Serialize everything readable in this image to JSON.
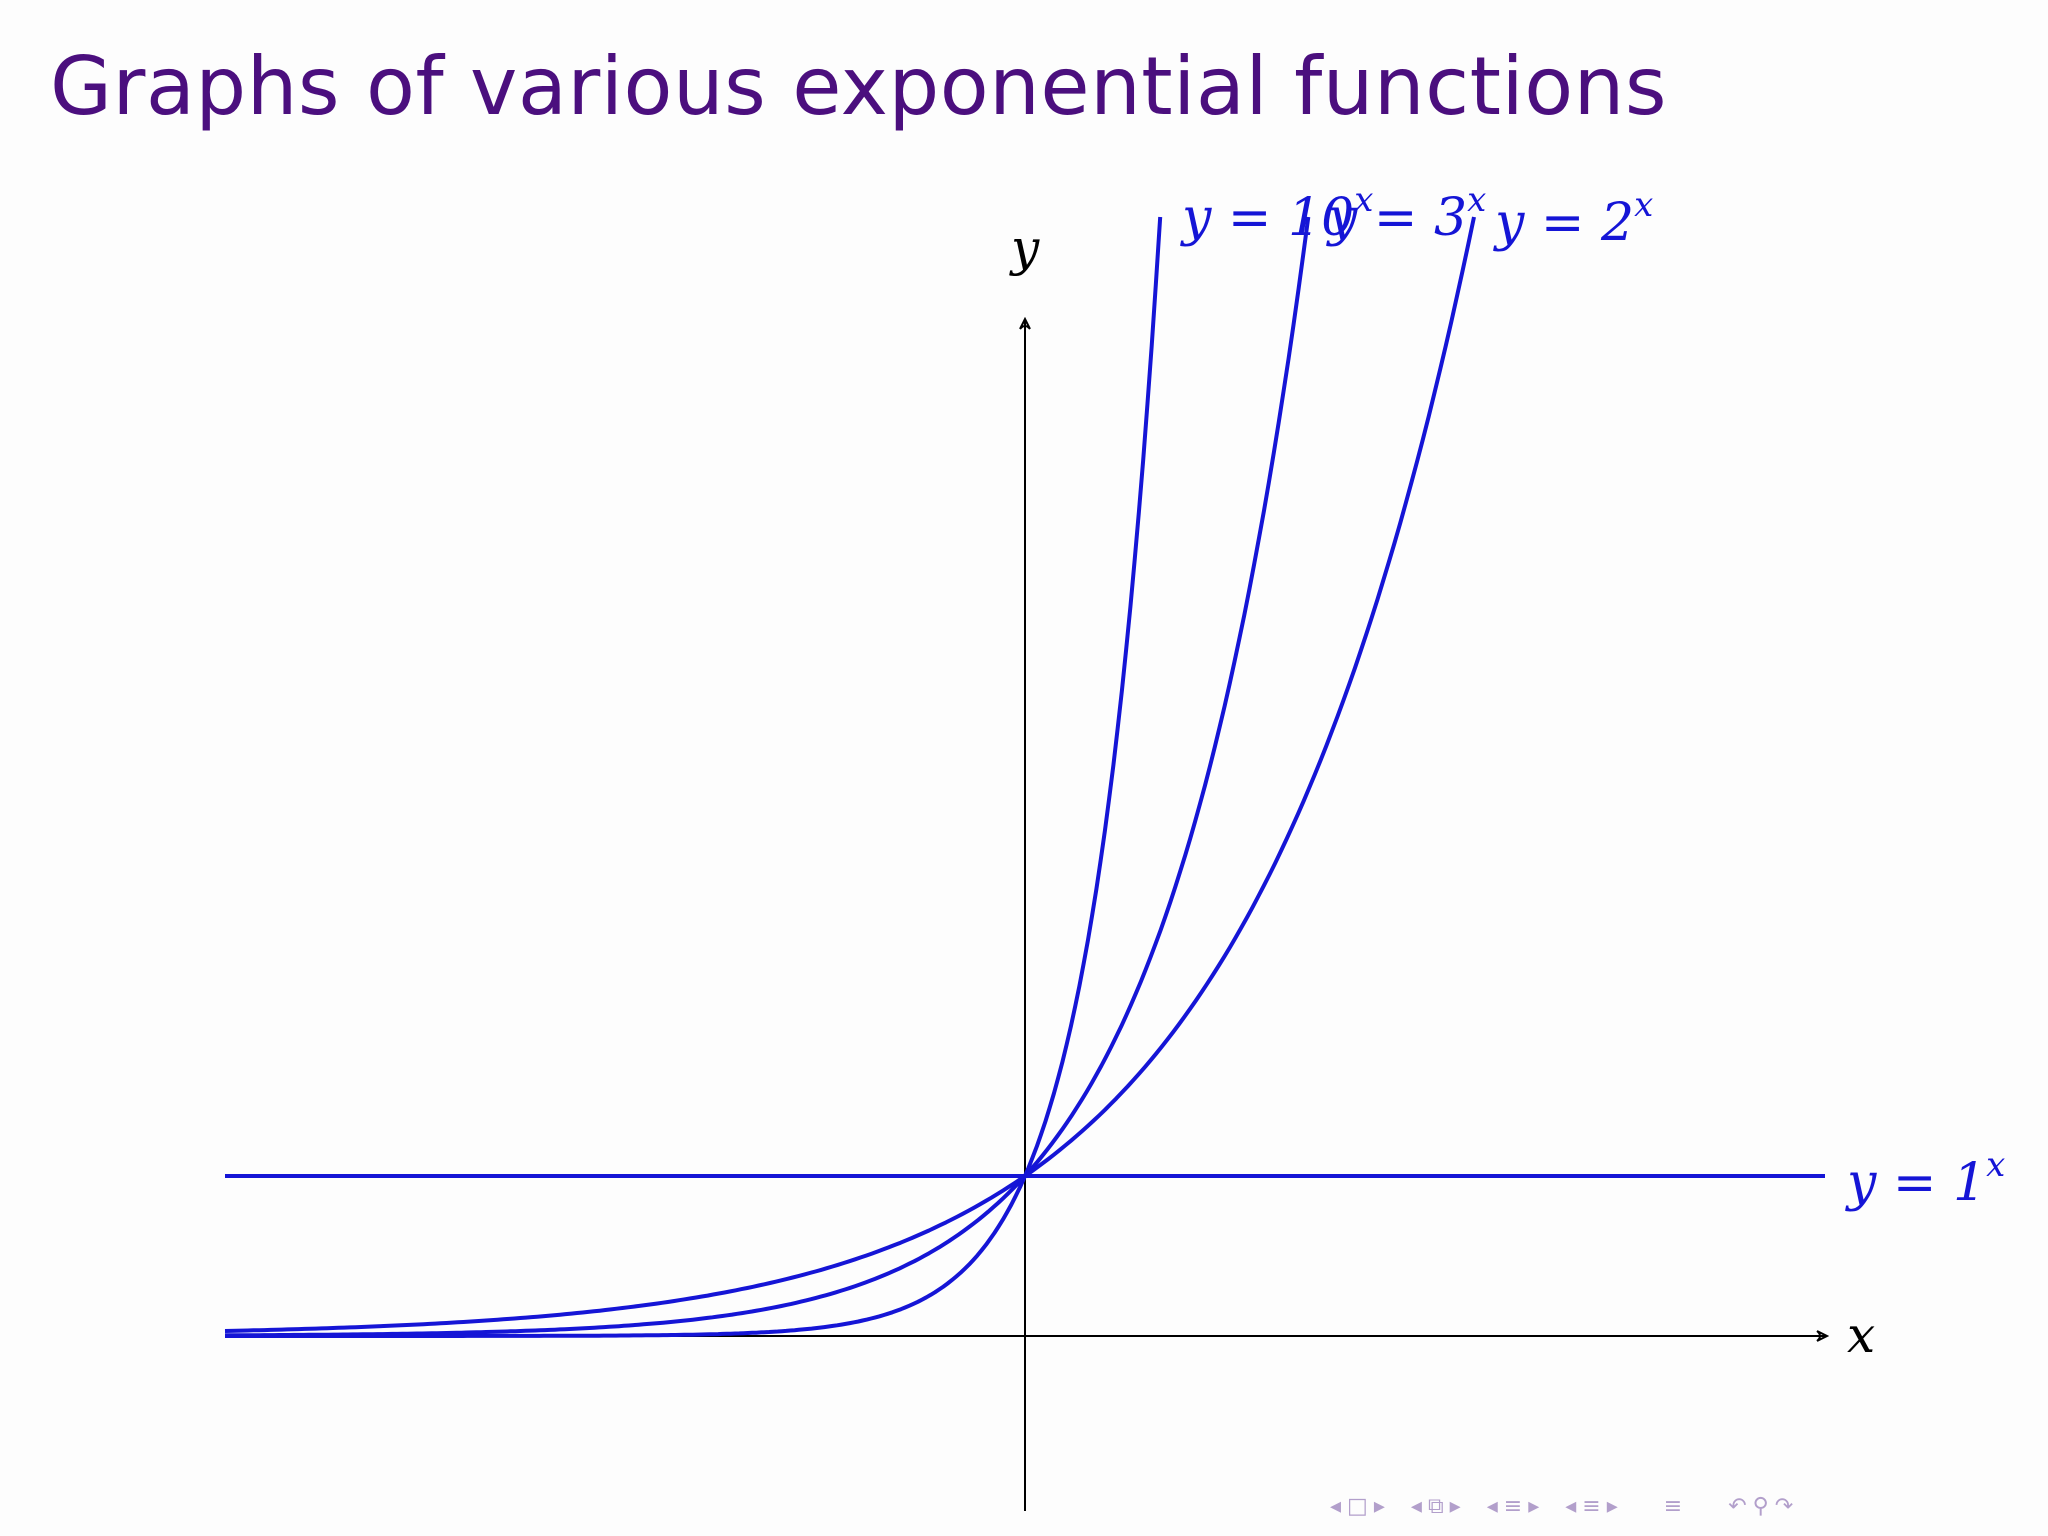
{
  "slide": {
    "title": "Graphs of various exponential functions"
  },
  "chart_data": {
    "type": "line",
    "title": "Graphs of various exponential functions",
    "xlabel": "x",
    "ylabel": "y",
    "xlim": [
      -5,
      5
    ],
    "ylim": [
      -1,
      6.4
    ],
    "grid": false,
    "series": [
      {
        "name": "y = 10^x",
        "base": 10,
        "x": [
          -5,
          -3,
          -2,
          -1,
          -0.5,
          0,
          0.3,
          0.5,
          0.7,
          0.83
        ],
        "y": [
          1e-05,
          0.001,
          0.01,
          0.1,
          0.316,
          1,
          1.995,
          3.162,
          5.012,
          6.76
        ]
      },
      {
        "name": "y = 3^x",
        "base": 3,
        "x": [
          -5,
          -3,
          -2,
          -1,
          -0.5,
          0,
          0.5,
          1,
          1.5,
          1.75
        ],
        "y": [
          0.004,
          0.037,
          0.111,
          0.333,
          0.577,
          1,
          1.732,
          3,
          5.196,
          6.84
        ]
      },
      {
        "name": "y = 2^x",
        "base": 2,
        "x": [
          -5,
          -3,
          -2,
          -1,
          0,
          1,
          2,
          2.5,
          2.78
        ],
        "y": [
          0.031,
          0.125,
          0.25,
          0.5,
          1,
          2,
          4,
          5.657,
          6.87
        ]
      },
      {
        "name": "y = 1^x",
        "base": 1,
        "x": [
          -5,
          5
        ],
        "y": [
          1,
          1
        ]
      }
    ],
    "labels": [
      {
        "series": "y = 10^x",
        "base": "y = 10",
        "exp": "x"
      },
      {
        "series": "y = 3^x",
        "base": "y = 3",
        "exp": "x"
      },
      {
        "series": "y = 2^x",
        "base": "y = 2",
        "exp": "x"
      },
      {
        "series": "y = 1^x",
        "base": "y = 1",
        "exp": "x"
      }
    ]
  },
  "navigation": {
    "icons": [
      "nav-prev-arrow-icon",
      "nav-frame-icon",
      "nav-next-arrow-icon",
      "nav-prev-arrow-icon",
      "nav-subsection-icon",
      "nav-next-arrow-icon",
      "nav-prev-arrow-icon",
      "nav-section-icon",
      "nav-next-arrow-icon",
      "nav-prev-arrow-icon",
      "nav-section-icon",
      "nav-next-arrow-icon",
      "nav-document-icon",
      "nav-undo-icon",
      "nav-search-icon",
      "nav-redo-icon"
    ]
  }
}
